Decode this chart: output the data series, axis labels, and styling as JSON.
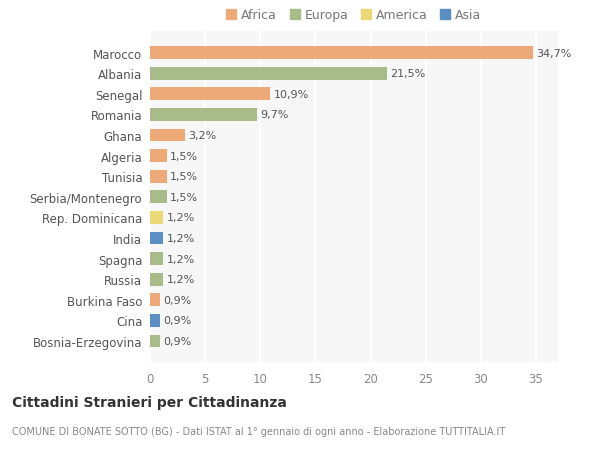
{
  "countries": [
    "Marocco",
    "Albania",
    "Senegal",
    "Romania",
    "Ghana",
    "Algeria",
    "Tunisia",
    "Serbia/Montenegro",
    "Rep. Dominicana",
    "India",
    "Spagna",
    "Russia",
    "Burkina Faso",
    "Cina",
    "Bosnia-Erzegovina"
  ],
  "values": [
    34.7,
    21.5,
    10.9,
    9.7,
    3.2,
    1.5,
    1.5,
    1.5,
    1.2,
    1.2,
    1.2,
    1.2,
    0.9,
    0.9,
    0.9
  ],
  "labels": [
    "34,7%",
    "21,5%",
    "10,9%",
    "9,7%",
    "3,2%",
    "1,5%",
    "1,5%",
    "1,5%",
    "1,2%",
    "1,2%",
    "1,2%",
    "1,2%",
    "0,9%",
    "0,9%",
    "0,9%"
  ],
  "continents": [
    "Africa",
    "Europa",
    "Africa",
    "Europa",
    "Africa",
    "Africa",
    "Africa",
    "Europa",
    "America",
    "Asia",
    "Europa",
    "Europa",
    "Africa",
    "Asia",
    "Europa"
  ],
  "colors": {
    "Africa": "#EDAA78",
    "Europa": "#A8BC8A",
    "America": "#EDD878",
    "Asia": "#5B8EC2"
  },
  "legend_order": [
    "Africa",
    "Europa",
    "America",
    "Asia"
  ],
  "title": "Cittadini Stranieri per Cittadinanza",
  "subtitle": "COMUNE DI BONATE SOTTO (BG) - Dati ISTAT al 1° gennaio di ogni anno - Elaborazione TUTTITALIA.IT",
  "xlim": [
    0,
    37
  ],
  "xticks": [
    0,
    5,
    10,
    15,
    20,
    25,
    30,
    35
  ],
  "background_color": "#ffffff",
  "plot_bg_color": "#f7f7f7"
}
